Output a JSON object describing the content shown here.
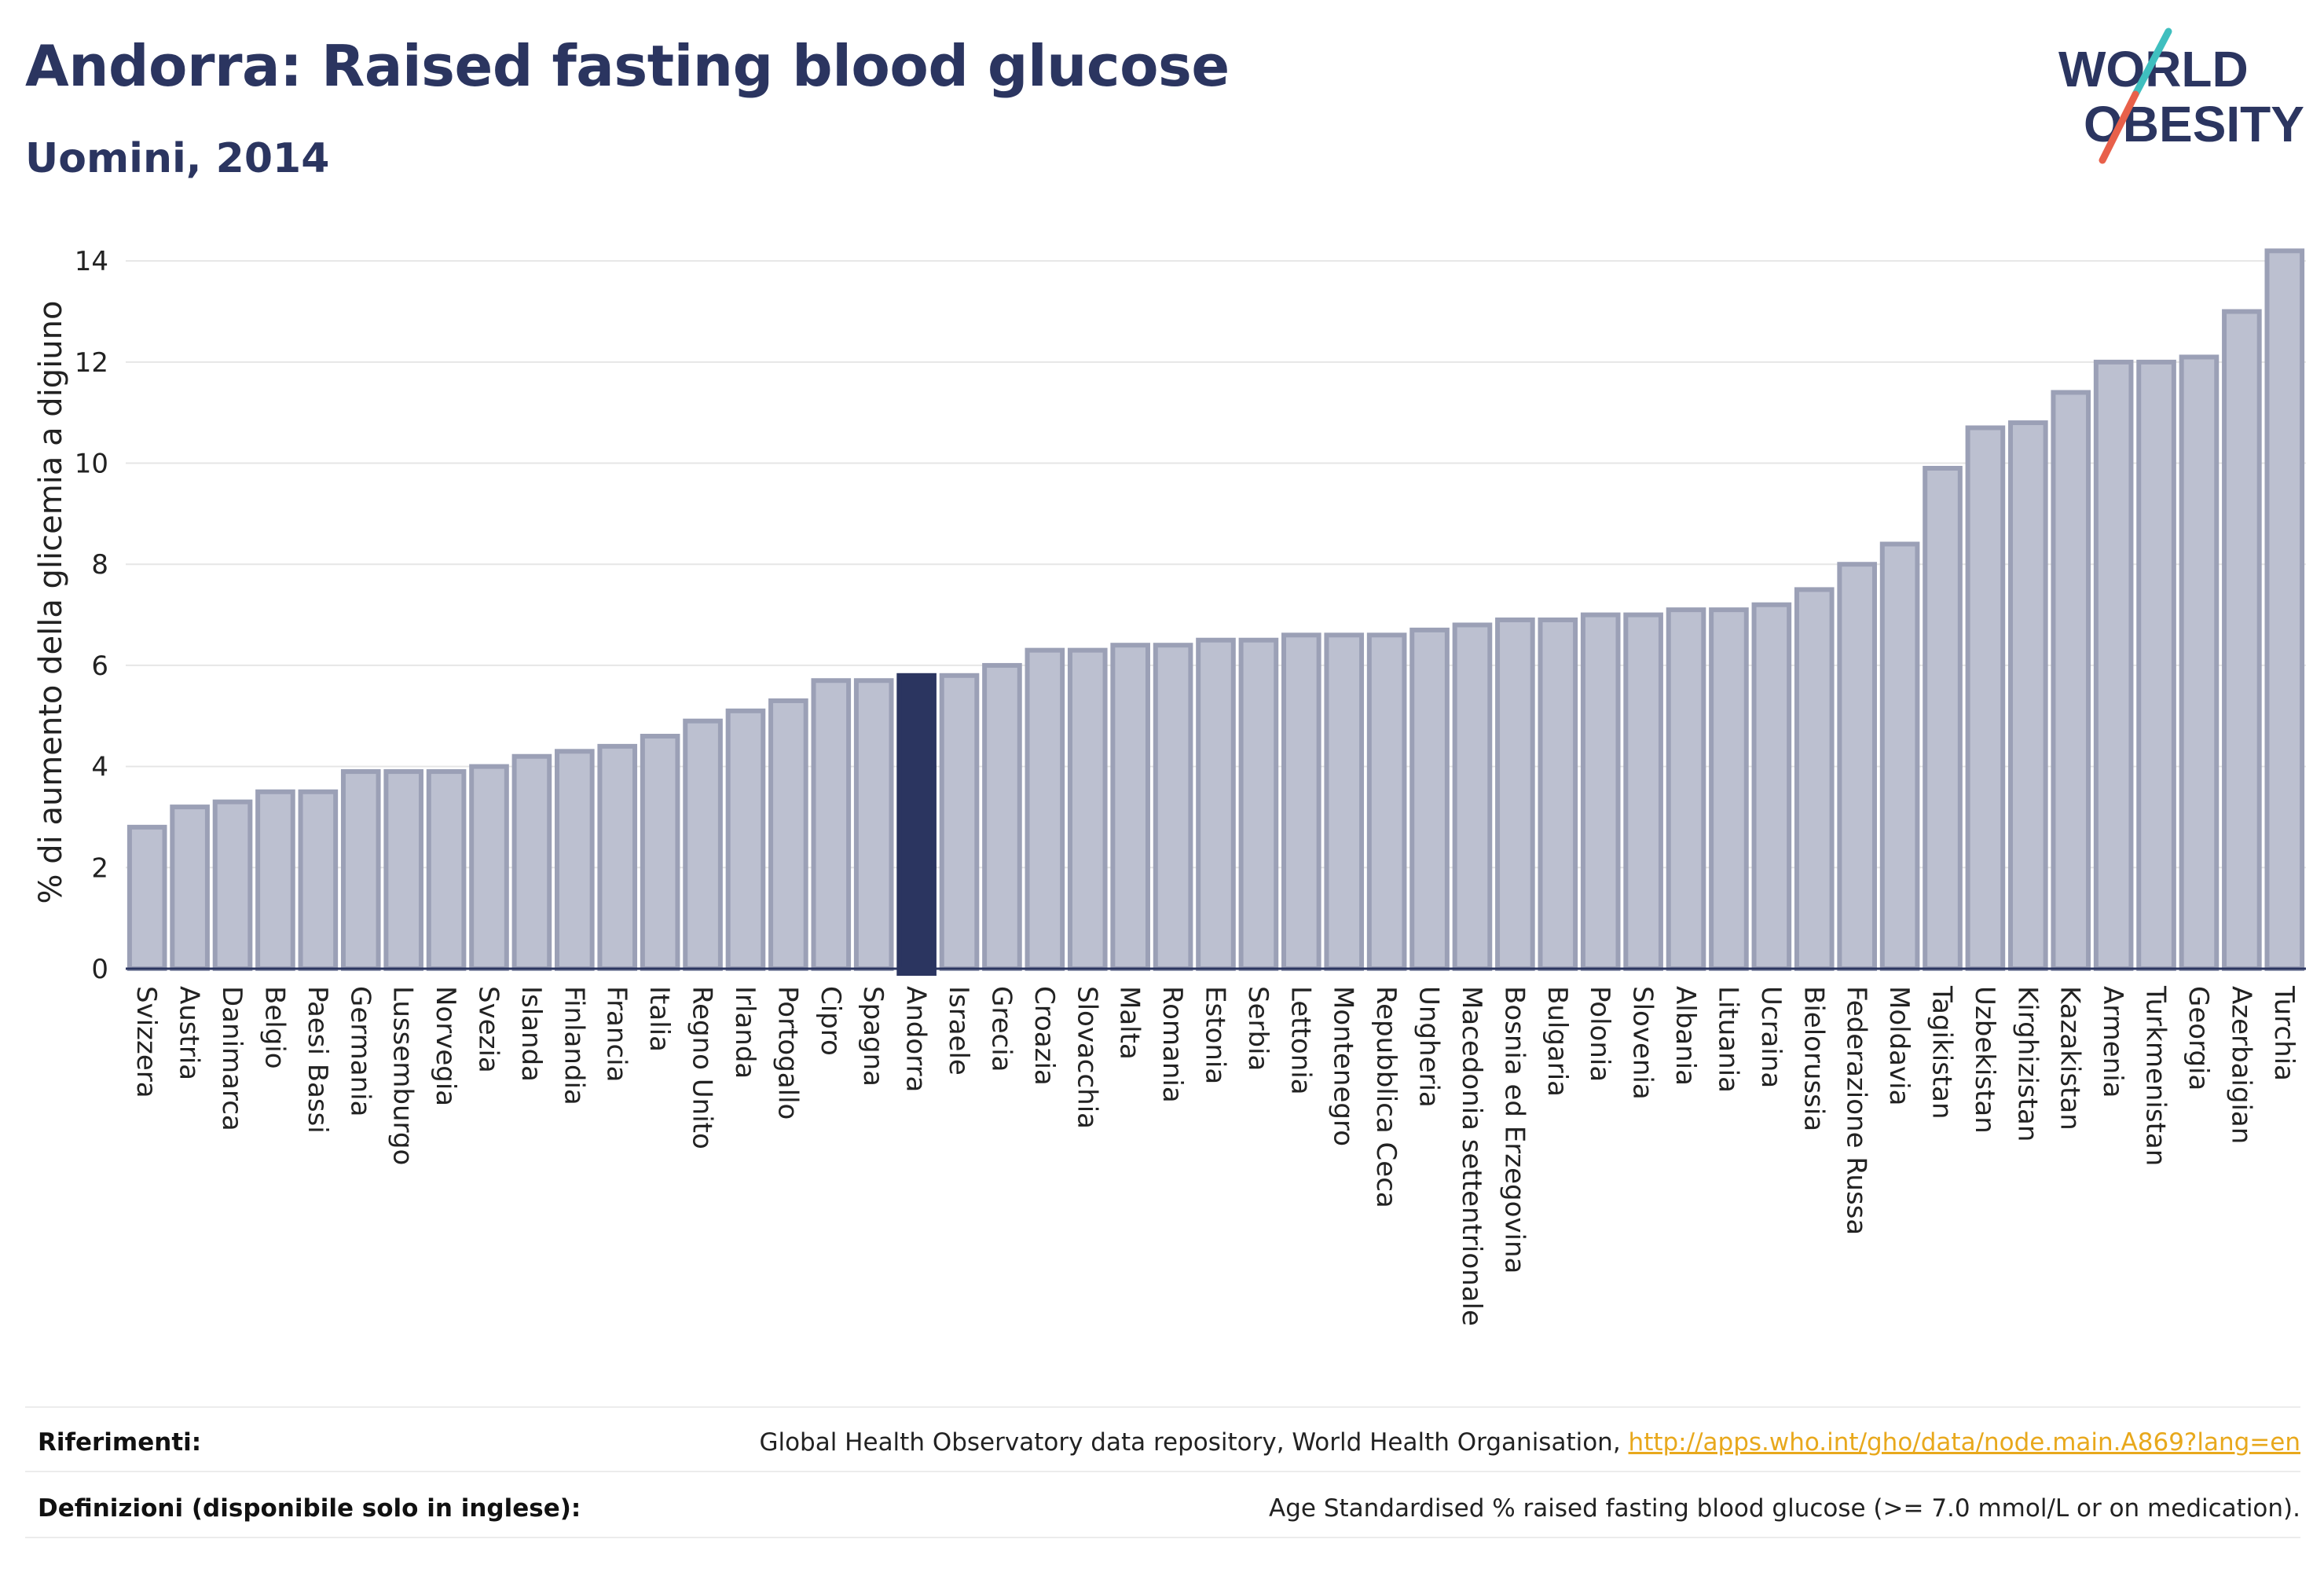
{
  "header": {
    "title": "Andorra: Raised fasting blood glucose",
    "subtitle": "Uomini, 2014"
  },
  "logo": {
    "line1": "WORLD",
    "line2": "OBESITY",
    "text_color": "#2b3560",
    "slash_colors": [
      "#3fbfbf",
      "#e8604a"
    ]
  },
  "chart_data": {
    "type": "bar",
    "title": "Andorra: Raised fasting blood glucose",
    "subtitle": "Uomini, 2014",
    "xlabel": "",
    "ylabel": "% di aumento della glicemia a digiuno",
    "ylim": [
      0,
      14.5
    ],
    "yticks": [
      0,
      2,
      4,
      6,
      8,
      10,
      12,
      14
    ],
    "grid": true,
    "highlight": "Andorra",
    "colors": {
      "bar": "#bcc0d0",
      "bar_edge": "#9ba0b6",
      "highlight": "#2b3560"
    },
    "categories": [
      "Svizzera",
      "Austria",
      "Danimarca",
      "Belgio",
      "Paesi Bassi",
      "Germania",
      "Lussemburgo",
      "Norvegia",
      "Svezia",
      "Islanda",
      "Finlandia",
      "Francia",
      "Italia",
      "Regno Unito",
      "Irlanda",
      "Portogallo",
      "Cipro",
      "Spagna",
      "Andorra",
      "Israele",
      "Grecia",
      "Croazia",
      "Slovacchia",
      "Malta",
      "Romania",
      "Estonia",
      "Serbia",
      "Lettonia",
      "Montenegro",
      "Repubblica Ceca",
      "Ungheria",
      "Macedonia settentrionale",
      "Bosnia ed Erzegovina",
      "Bulgaria",
      "Polonia",
      "Slovenia",
      "Albania",
      "Lituania",
      "Ucraina",
      "Bielorussia",
      "Federazione Russa",
      "Moldavia",
      "Tagikistan",
      "Uzbekistan",
      "Kirghizistan",
      "Kazakistan",
      "Armenia",
      "Turkmenistan",
      "Georgia",
      "Azerbaigian",
      "Turchia"
    ],
    "values": [
      2.8,
      3.2,
      3.3,
      3.5,
      3.5,
      3.9,
      3.9,
      3.9,
      4.0,
      4.2,
      4.3,
      4.4,
      4.6,
      4.9,
      5.1,
      5.3,
      5.7,
      5.7,
      5.8,
      5.8,
      6.0,
      6.3,
      6.3,
      6.4,
      6.4,
      6.5,
      6.5,
      6.6,
      6.6,
      6.6,
      6.7,
      6.8,
      6.9,
      6.9,
      7.0,
      7.0,
      7.1,
      7.1,
      7.2,
      7.5,
      8.0,
      8.4,
      9.9,
      10.7,
      10.8,
      11.4,
      12.0,
      12.0,
      12.1,
      13.0,
      14.2
    ]
  },
  "footer": {
    "references_label": "Riferimenti:",
    "references_text": "Global Health Observatory data repository, World Health Organisation, ",
    "references_link": "http://apps.who.int/gho/data/node.main.A869?lang=en",
    "definitions_label": "Definizioni (disponibile solo in inglese):",
    "definitions_text": "Age Standardised % raised fasting blood glucose (>= 7.0 mmol/L or on medication)."
  }
}
